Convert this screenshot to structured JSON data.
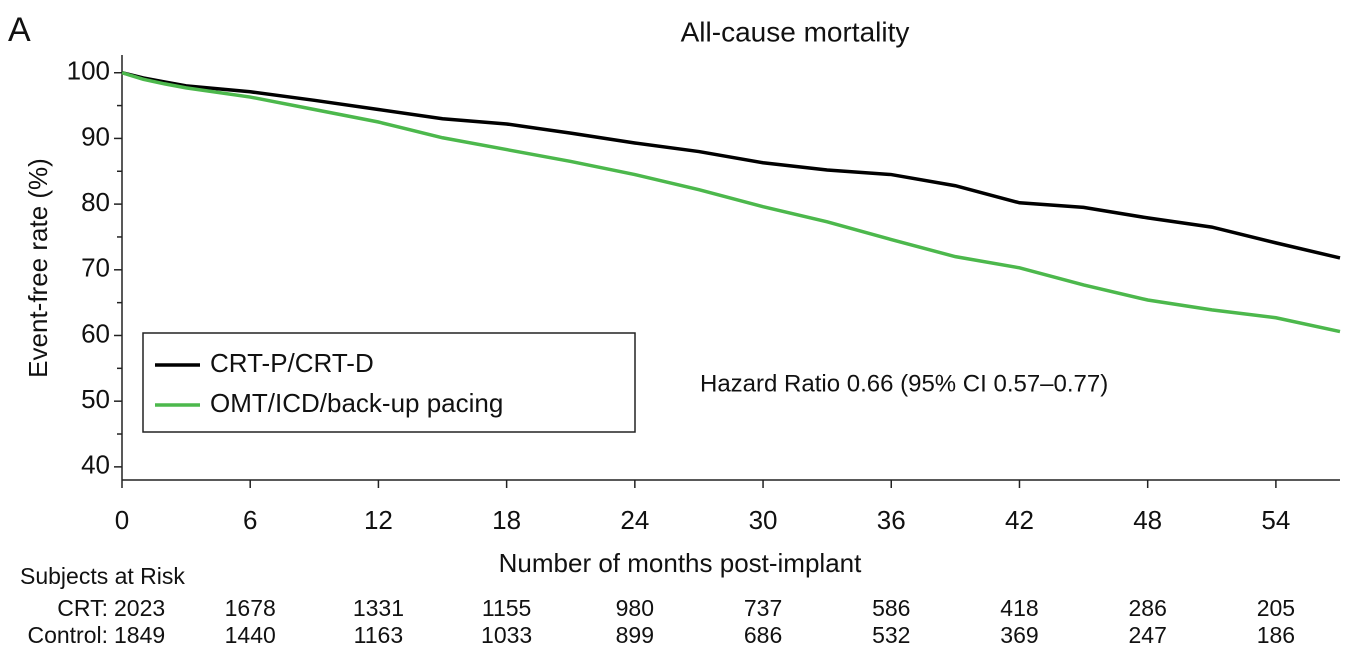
{
  "chart_data": {
    "type": "line",
    "panel_label": "A",
    "title": "All-cause mortality",
    "y_label": "Event-free rate (%)",
    "x_label": "Number of months post-implant",
    "annotation": "Hazard Ratio 0.66 (95% CI 0.57–0.77)",
    "x": [
      0,
      1,
      2,
      3,
      6,
      9,
      12,
      15,
      18,
      21,
      24,
      27,
      30,
      33,
      36,
      39,
      42,
      45,
      48,
      51,
      54,
      57
    ],
    "series": [
      {
        "name": "CRT-P/CRT-D",
        "color": "#000000",
        "values": [
          100,
          99.2,
          98.6,
          98,
          97.1,
          95.8,
          94.4,
          93,
          92.2,
          90.8,
          89.3,
          88,
          86.3,
          85.2,
          84.5,
          82.8,
          80.2,
          79.5,
          77.9,
          76.5,
          74.1,
          71.8
        ]
      },
      {
        "name": "OMT/ICD/back-up pacing",
        "color": "#4cb84c",
        "values": [
          100,
          99,
          98.3,
          97.7,
          96.3,
          94.4,
          92.5,
          90.1,
          88.3,
          86.5,
          84.5,
          82.2,
          79.6,
          77.3,
          74.6,
          72,
          70.3,
          67.7,
          65.4,
          63.9,
          62.7,
          60.6
        ]
      }
    ],
    "xlim": [
      0,
      57
    ],
    "xticks": [
      0,
      6,
      12,
      18,
      24,
      30,
      36,
      42,
      48,
      54
    ],
    "ylim": [
      38,
      102.7
    ],
    "yticks": [
      40,
      50,
      60,
      70,
      80,
      90,
      100
    ],
    "yminor": [
      45,
      55,
      65,
      75,
      85,
      95
    ],
    "risk_table": {
      "title": "Subjects at Risk",
      "rows": [
        {
          "label": "CRT:",
          "values": [
            2023,
            1678,
            1331,
            1155,
            980,
            737,
            586,
            418,
            286,
            205
          ]
        },
        {
          "label": "Control:",
          "values": [
            1849,
            1440,
            1163,
            1033,
            899,
            686,
            532,
            369,
            247,
            186
          ]
        }
      ]
    }
  }
}
